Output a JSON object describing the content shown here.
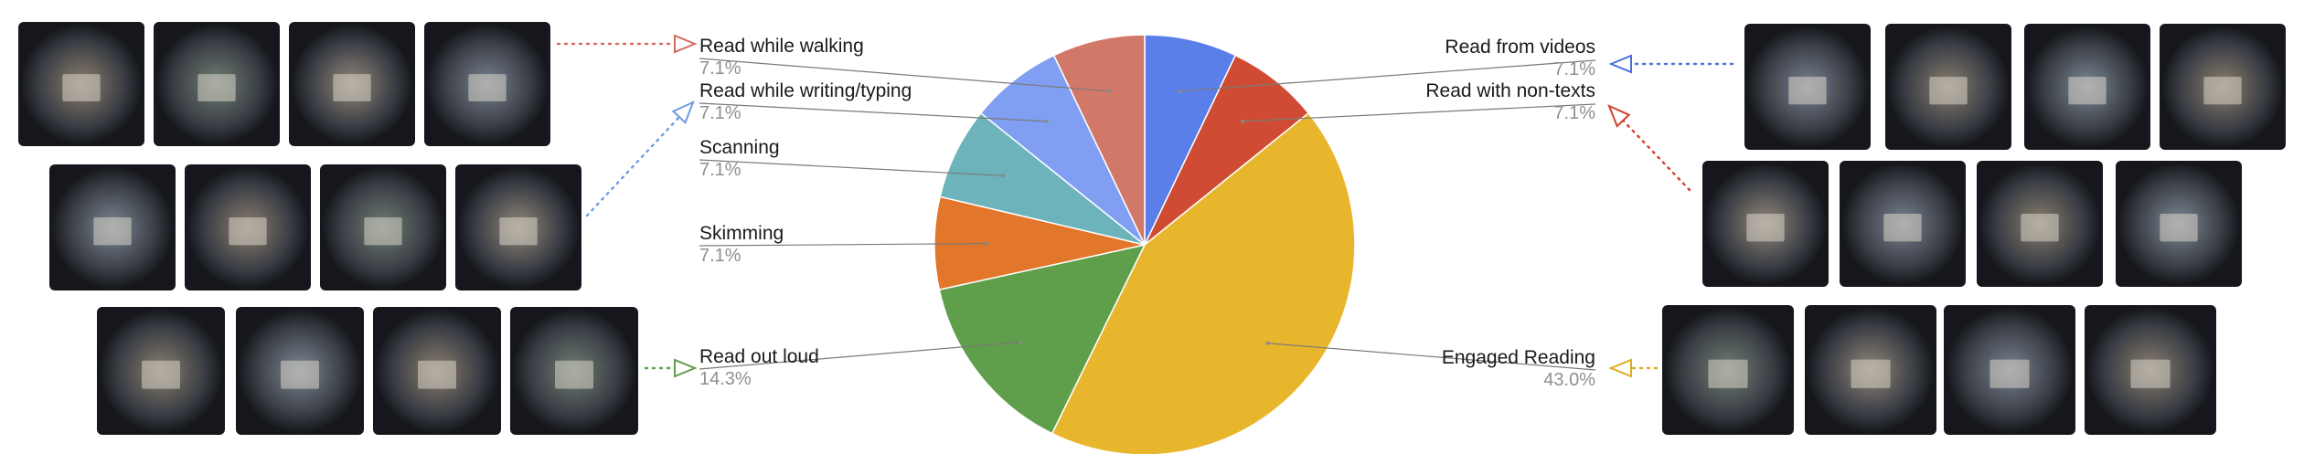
{
  "chart_data": {
    "type": "pie",
    "title": "",
    "slices": [
      {
        "label": "Read from videos",
        "value": 7.1,
        "display": "7.1%",
        "color": "#5b7fe8"
      },
      {
        "label": "Read with non-texts",
        "value": 7.1,
        "display": "7.1%",
        "color": "#cf4b33"
      },
      {
        "label": "Engaged Reading",
        "value": 43.0,
        "display": "43.0%",
        "color": "#e8b62d"
      },
      {
        "label": "Read out loud",
        "value": 14.3,
        "display": "14.3%",
        "color": "#5f9e4a"
      },
      {
        "label": "Skimming",
        "value": 7.1,
        "display": "7.1%",
        "color": "#e2762a"
      },
      {
        "label": "Scanning",
        "value": 7.1,
        "display": "7.1%",
        "color": "#6db3bb"
      },
      {
        "label": "Read while writing/typing",
        "value": 7.1,
        "display": "7.1%",
        "color": "#809ef2"
      },
      {
        "label": "Read while walking",
        "value": 7.1,
        "display": "7.1%",
        "color": "#d27868"
      }
    ],
    "start": "top",
    "direction": "clockwise"
  }
}
